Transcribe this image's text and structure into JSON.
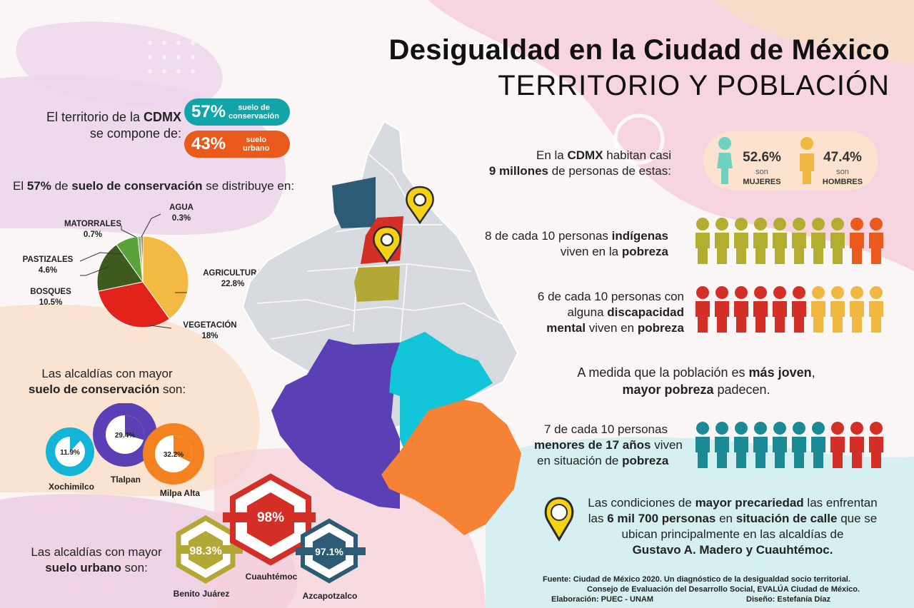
{
  "header": {
    "title": "Desigualdad en la Ciudad de México",
    "subtitle": "TERRITORIO Y POBLACIÓN"
  },
  "territory": {
    "intro_a": "El territorio de la ",
    "intro_b": "CDMX",
    "intro_c": "se compone de:",
    "conservation": {
      "pct": "57%",
      "label_a": "suelo de",
      "label_b": "conservación",
      "color": "#12a4a8"
    },
    "urban": {
      "pct": "43%",
      "label_a": "suelo",
      "label_b": "urbano",
      "color": "#e95a1c"
    }
  },
  "distribution": {
    "intro_a": "El ",
    "intro_b": "57%",
    "intro_c": " de ",
    "intro_d": "suelo de conservación",
    "intro_e": " se distribuye en:"
  },
  "chart_data": {
    "type": "pie",
    "slices": [
      {
        "label": "AGRICULTURA",
        "display": "22.8%",
        "value": 22.8,
        "color": "#f3b943"
      },
      {
        "label": "VEGETACIÓN",
        "display": "18%",
        "value": 18.0,
        "color": "#e2231a"
      },
      {
        "label": "BOSQUES",
        "display": "10.5%",
        "value": 10.5,
        "color": "#3f5a1f"
      },
      {
        "label": "PASTIZALES",
        "display": "4.6%",
        "value": 4.6,
        "color": "#5aa33a"
      },
      {
        "label": "MATORRALES",
        "display": "0.7%",
        "value": 0.7,
        "color": "#9fb07a"
      },
      {
        "label": "AGUA",
        "display": "0.3%",
        "value": 0.3,
        "color": "#222222"
      }
    ]
  },
  "conservation_alcaldias": {
    "intro_a": "Las alcaldías con mayor",
    "intro_b": "suelo de conservación",
    "intro_c": " son:",
    "items": [
      {
        "name": "Xochimilco",
        "display": "11.9%",
        "value": 11.9,
        "color": "#12b5d8"
      },
      {
        "name": "Tlalpan",
        "display": "29.4%",
        "value": 29.4,
        "color": "#5a3fb5"
      },
      {
        "name": "Milpa Alta",
        "display": "32.2%",
        "value": 32.2,
        "color": "#f58220"
      }
    ]
  },
  "urban_alcaldias": {
    "intro_a": "Las alcaldías con mayor",
    "intro_b": "suelo urbano",
    "intro_c": " son:",
    "items": [
      {
        "name": "Benito Juárez",
        "display": "98.3%",
        "color": "#b3a836"
      },
      {
        "name": "Cuauhtémoc",
        "display": "98%",
        "color": "#d32f27"
      },
      {
        "name": "Azcapotzalco",
        "display": "97.1%",
        "color": "#2c5b75"
      }
    ]
  },
  "population": {
    "line1_a": "En la ",
    "line1_b": "CDMX",
    "line1_c": " habitan casi",
    "line2_a": "9 millones",
    "line2_b": " de personas de estas:",
    "women": {
      "pct": "52.6%",
      "son": "son",
      "label": "MUJERES",
      "color": "#6fd1bf"
    },
    "men": {
      "pct": "47.4%",
      "son": "son",
      "label": "HOMBRES",
      "color": "#f0b840"
    }
  },
  "stats": {
    "indigenous": {
      "a": "8 de cada 10 personas ",
      "b": "indígenas",
      "c": "viven en la ",
      "d": "pobreza",
      "count": 8,
      "on": "#b3ae2f",
      "off": "#e95a1c"
    },
    "disability": {
      "a": "6 de cada 10 personas con",
      "b": "alguna ",
      "c": "discapacidad",
      "d": "mental",
      "e": " viven en ",
      "f": "pobreza",
      "count": 6,
      "on": "#d32f27",
      "off": "#f0b840"
    },
    "young": {
      "a": "A medida que la población es ",
      "b": "más joven",
      "c": ",",
      "d": "mayor pobreza",
      "e": " padecen."
    },
    "minors": {
      "a": "7 de cada 10 personas",
      "b": "menores de 17 años",
      "c": " viven",
      "d": "en situación de ",
      "e": "pobreza",
      "count": 7,
      "on": "#1c8a94",
      "off": "#d32f27"
    },
    "street": {
      "a": "Las condiciones de ",
      "b": "mayor precariedad",
      "c": " las enfrentan",
      "d": "las ",
      "e": "6 mil 700 personas",
      "f": " en ",
      "g": "situación de calle",
      "h": " que se",
      "i": "ubican principalmente en las alcaldías de",
      "j": "Gustavo A. Madero y Cuauhtémoc."
    }
  },
  "source": {
    "line1": "Fuente: Ciudad de México 2020. Un diagnóstico de la desigualdad socio territorial.",
    "line2": "Consejo de Evaluación del Desarrollo Social, EVALÚA Ciudad de México.",
    "line3": "Elaboración: PUEC - UNAM",
    "line4": "Diseño: Estefanía Díaz"
  },
  "colors": {
    "map_gray": "#d7dbe0",
    "map_purple": "#5a3fb5",
    "map_cyan": "#12c5d8",
    "map_orange": "#f58235",
    "map_teal": "#2c5b75",
    "map_red": "#d32f27",
    "map_olive": "#b3a836",
    "pin": "#f5d114"
  }
}
